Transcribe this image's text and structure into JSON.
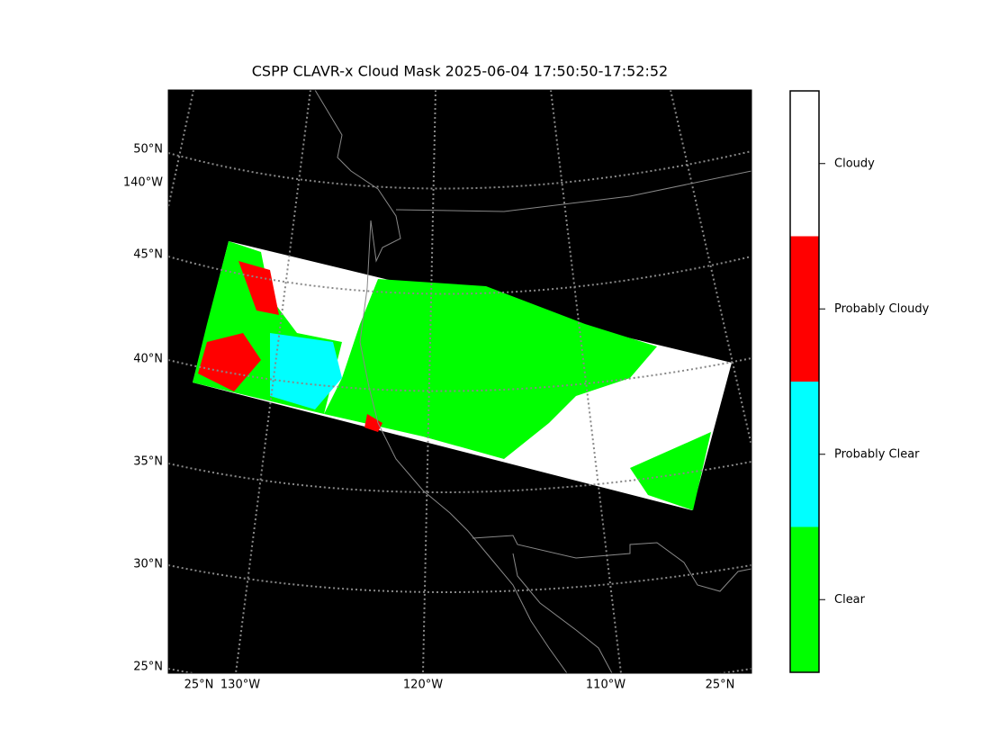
{
  "title": "CSPP CLAVR-x Cloud Mask 2025-06-04 17:50:50-17:52:52",
  "left_labels": [
    "50°N",
    "140°W",
    "45°N",
    "40°N",
    "35°N",
    "30°N",
    "25°N"
  ],
  "bottom_labels": [
    "25°N",
    "130°W",
    "120°W",
    "110°W",
    "25°N"
  ],
  "legend": [
    {
      "label": "Clear",
      "color": "#00ff00"
    },
    {
      "label": "Probably Clear",
      "color": "#00ffff"
    },
    {
      "label": "Probably Cloudy",
      "color": "#ff0000"
    },
    {
      "label": "Cloudy",
      "color": "#ffffff"
    }
  ]
}
